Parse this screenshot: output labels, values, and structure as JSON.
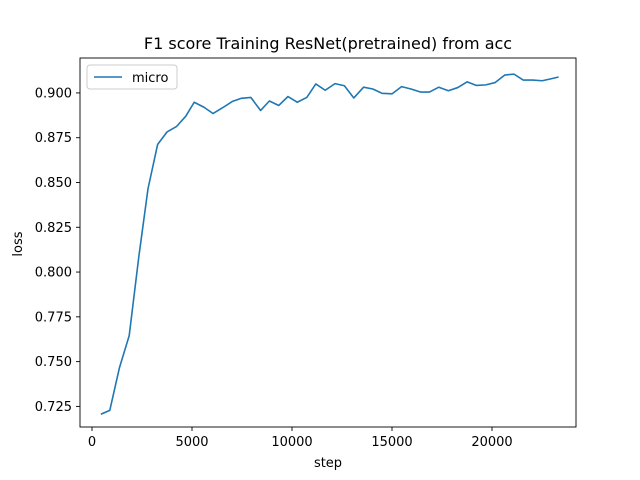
{
  "chart_data": {
    "type": "line",
    "title": "F1 score Training ResNet(pretrained) from acc",
    "xlabel": "step",
    "ylabel": "loss",
    "xlim": [
      -600,
      24200
    ],
    "ylim": [
      0.7135,
      0.9195
    ],
    "xticks": [
      0,
      5000,
      10000,
      15000,
      20000
    ],
    "yticks": [
      0.725,
      0.75,
      0.775,
      0.8,
      0.825,
      0.85,
      0.875,
      0.9
    ],
    "ytick_labels": [
      "0.725",
      "0.750",
      "0.775",
      "0.800",
      "0.825",
      "0.850",
      "0.875",
      "0.900"
    ],
    "grid": false,
    "legend_position": "top-left",
    "colors": {
      "micro": "#1f77b4"
    },
    "series": [
      {
        "name": "micro",
        "x": [
          480,
          890,
          1370,
          1860,
          2340,
          2800,
          3280,
          3750,
          4220,
          4690,
          5110,
          5600,
          6050,
          6540,
          7010,
          7470,
          7940,
          8430,
          8870,
          9340,
          9800,
          10260,
          10740,
          11190,
          11660,
          12150,
          12620,
          13090,
          13580,
          14040,
          14500,
          15000,
          15480,
          15950,
          16420,
          16870,
          17340,
          17820,
          18290,
          18760,
          19210,
          19690,
          20160,
          20640,
          21100,
          21560,
          22040,
          22510,
          22990,
          23290
        ],
        "values": [
          0.7208,
          0.7228,
          0.7465,
          0.7645,
          0.8085,
          0.8465,
          0.8712,
          0.8782,
          0.8812,
          0.887,
          0.8948,
          0.892,
          0.8885,
          0.8918,
          0.8952,
          0.897,
          0.8975,
          0.8902,
          0.8955,
          0.893,
          0.898,
          0.8948,
          0.8975,
          0.905,
          0.9015,
          0.9052,
          0.904,
          0.8972,
          0.9032,
          0.9022,
          0.8998,
          0.8995,
          0.9035,
          0.9022,
          0.9005,
          0.9005,
          0.9032,
          0.9012,
          0.903,
          0.9062,
          0.9042,
          0.9045,
          0.9058,
          0.91,
          0.9105,
          0.9072,
          0.9072,
          0.9068,
          0.908,
          0.9088
        ]
      }
    ]
  }
}
